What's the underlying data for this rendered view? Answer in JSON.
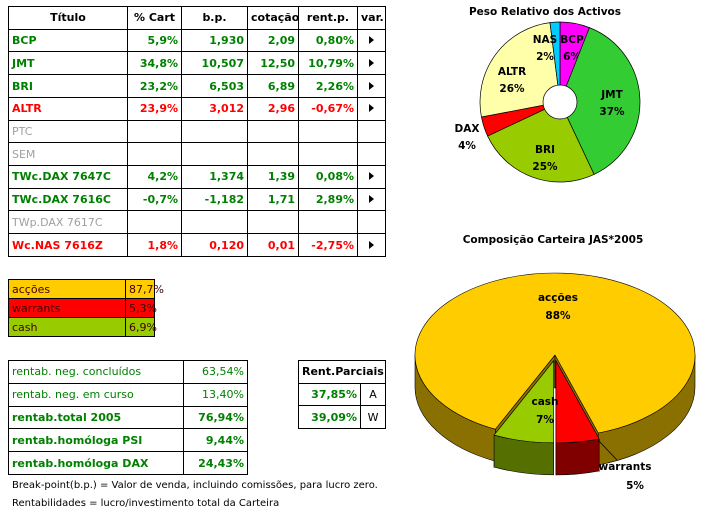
{
  "table": {
    "columns": [
      "Título",
      "% Cart",
      "b.p.",
      "cotação",
      "rent.p.",
      "var."
    ],
    "rows": [
      [
        "BCP",
        "5,9%",
        "1,930",
        "2,09",
        "0,80%"
      ],
      [
        "JMT",
        "34,8%",
        "10,507",
        "12,50",
        "10,79%"
      ],
      [
        "BRI",
        "23,2%",
        "6,503",
        "6,89",
        "2,26%"
      ],
      [
        "ALTR",
        "23,9%",
        "3,012",
        "2,96",
        "-0,67%"
      ],
      [
        "PTC"
      ],
      [
        "SEM"
      ],
      [
        "TWc.DAX 7647C",
        "4,2%",
        "1,374",
        "1,39",
        "0,08%"
      ],
      [
        "TWc.DAX 7616C",
        "-0,7%",
        "-1,182",
        "1,71",
        "2,89%"
      ],
      [
        "TWp.DAX 7617C"
      ],
      [
        "Wc.NAS 7616Z",
        "1,8%",
        "0,120",
        "0,01",
        "-2,75%"
      ]
    ],
    "row_colors": [
      "#008000",
      "#008000",
      "#008000",
      "#ff0000",
      "#a0a0a0",
      "#a0a0a0",
      "#008000",
      "#008000",
      "#a0a0a0",
      "#ff0000"
    ]
  },
  "allocation": {
    "rows": [
      [
        "acções",
        "87,7%"
      ],
      [
        "warrants",
        "5,3%"
      ],
      [
        "cash",
        "6,9%"
      ]
    ],
    "colors": [
      "#ffcc00",
      "#ff0000",
      "#99cc00"
    ]
  },
  "returns": {
    "rows": [
      [
        "rentab. neg. concluídos",
        "63,54%"
      ],
      [
        "rentab. neg. em curso",
        "13,40%"
      ],
      [
        "rentab.total 2005",
        "76,94%"
      ],
      [
        "rentab.homóloga PSI",
        "9,44%"
      ],
      [
        "rentab.homóloga DAX",
        "24,43%"
      ]
    ]
  },
  "partial_returns": {
    "header": "Rent.Parciais",
    "rows": [
      [
        "37,85%",
        "A"
      ],
      [
        "39,09%",
        "W"
      ]
    ]
  },
  "notes": [
    "Break-point(b.p.) = Valor de venda, incluindo comissões, para lucro zero.",
    "Rentabilidades = lucro/investimento total da Carteira"
  ],
  "chart_data": [
    {
      "type": "pie",
      "title": "Peso Relativo dos Activos",
      "donut": true,
      "categories": [
        "BCP",
        "JMT",
        "BRI",
        "DAX",
        "ALTR",
        "NAS"
      ],
      "values": [
        6,
        37,
        25,
        4,
        26,
        2
      ],
      "value_labels": [
        "6%",
        "37%",
        "25%",
        "4%",
        "26%",
        "2%"
      ],
      "colors": [
        "#ff00ff",
        "#33cc33",
        "#99cc00",
        "#ff0000",
        "#ffffaa",
        "#00ccff"
      ]
    },
    {
      "type": "pie3d",
      "title": "Composição Carteira JAS*2005",
      "categories": [
        "acções",
        "warrants",
        "cash"
      ],
      "values": [
        88,
        5,
        7
      ],
      "value_labels": [
        "88%",
        "5%",
        "7%"
      ],
      "colors": [
        "#ffcc00",
        "#ff0000",
        "#99cc00"
      ],
      "side_colors": [
        "#8a7000",
        "#800000",
        "#557000"
      ]
    }
  ]
}
